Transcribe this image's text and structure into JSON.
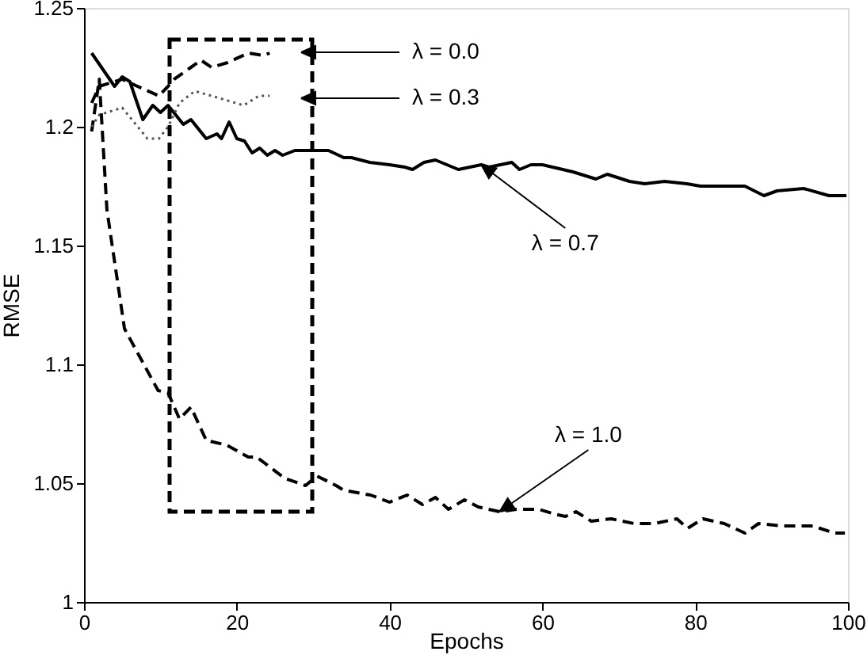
{
  "chart_data": {
    "type": "line",
    "xlabel": "Epochs",
    "ylabel": "RMSE",
    "xlim": [
      0,
      100
    ],
    "ylim": [
      1,
      1.25
    ],
    "xticks": [
      0,
      20,
      40,
      60,
      80,
      100
    ],
    "yticks": [
      1,
      1.05,
      1.1,
      1.15,
      1.2,
      1.25
    ],
    "grid": false,
    "series": [
      {
        "color": "#000000",
        "line_style": "solid",
        "x": [
          1,
          4,
          5,
          6,
          7.7,
          9,
          10,
          11,
          13,
          14,
          16,
          17.4,
          18,
          19,
          20,
          21,
          22,
          23,
          24,
          25,
          26,
          27.6,
          30.5,
          32,
          34,
          35,
          37.4,
          40,
          42,
          43,
          44.5,
          46,
          49,
          52,
          53,
          56,
          57,
          58.5,
          60,
          64,
          67,
          68.5,
          71.4,
          73.4,
          76,
          78.9,
          80.7,
          83.8,
          86.5,
          89,
          90.7,
          94.2,
          97.5,
          99.8
        ],
        "values": [
          1.231,
          1.217,
          1.221,
          1.219,
          1.203,
          1.209,
          1.206,
          1.209,
          1.201,
          1.203,
          1.195,
          1.197,
          1.195,
          1.202,
          1.195,
          1.194,
          1.189,
          1.191,
          1.188,
          1.19,
          1.188,
          1.19,
          1.19,
          1.19,
          1.187,
          1.187,
          1.185,
          1.184,
          1.183,
          1.182,
          1.185,
          1.186,
          1.182,
          1.184,
          1.183,
          1.185,
          1.182,
          1.184,
          1.184,
          1.181,
          1.178,
          1.18,
          1.177,
          1.176,
          1.177,
          1.176,
          1.175,
          1.175,
          1.175,
          1.171,
          1.173,
          1.174,
          1.171,
          1.171
        ]
      },
      {
        "color": "#000000",
        "line_style": "dashed",
        "x": [
          1,
          2,
          3,
          5.3,
          8,
          9.7,
          11,
          12.5,
          14,
          16,
          18.7,
          21.5,
          22.6,
          26.3,
          29,
          30.5,
          33,
          34,
          37.5,
          40,
          42.3,
          44.3,
          46,
          47.7,
          49.8,
          51.6,
          54.4,
          56.6,
          59.5,
          61.6,
          63,
          64.4,
          66.4,
          69,
          72,
          74.7,
          77.6,
          79,
          81,
          83.8,
          86.5,
          88.3,
          91.3,
          95.4,
          98.2,
          99.6
        ],
        "values": [
          1.198,
          1.22,
          1.165,
          1.115,
          1.099,
          1.089,
          1.088,
          1.077,
          1.082,
          1.068,
          1.066,
          1.061,
          1.061,
          1.052,
          1.049,
          1.053,
          1.049,
          1.047,
          1.045,
          1.042,
          1.045,
          1.041,
          1.044,
          1.039,
          1.043,
          1.04,
          1.038,
          1.039,
          1.039,
          1.037,
          1.036,
          1.038,
          1.034,
          1.035,
          1.033,
          1.033,
          1.035,
          1.031,
          1.035,
          1.033,
          1.029,
          1.033,
          1.032,
          1.032,
          1.029,
          1.029
        ]
      },
      {
        "color": "#000000",
        "line_style": "dashed",
        "x": [
          1,
          2,
          5,
          7,
          9.8,
          11,
          11.8,
          14,
          15.3,
          16.7,
          18.8,
          21.5,
          23.5,
          24.3
        ],
        "values": [
          1.21,
          1.217,
          1.22,
          1.217,
          1.213,
          1.217,
          1.22,
          1.225,
          1.228,
          1.225,
          1.227,
          1.231,
          1.23,
          1.231
        ]
      },
      {
        "color": "#555555",
        "line_style": "dotted",
        "x": [
          1,
          2,
          5,
          8.3,
          9.8,
          11,
          12.5,
          14.5,
          16.7,
          18.8,
          20.9,
          22.9,
          24.3
        ],
        "values": [
          1.2,
          1.205,
          1.208,
          1.195,
          1.195,
          1.2,
          1.21,
          1.215,
          1.213,
          1.211,
          1.209,
          1.213,
          1.213
        ]
      }
    ],
    "annotations": [
      "λ = 0.0",
      "λ = 0.3",
      {
        "text": "λ = 0.7",
        "x": 52,
        "y": 1.184
      },
      {
        "text": "λ = 1.0",
        "x": 54.4,
        "y": 1.038
      }
    ]
  }
}
